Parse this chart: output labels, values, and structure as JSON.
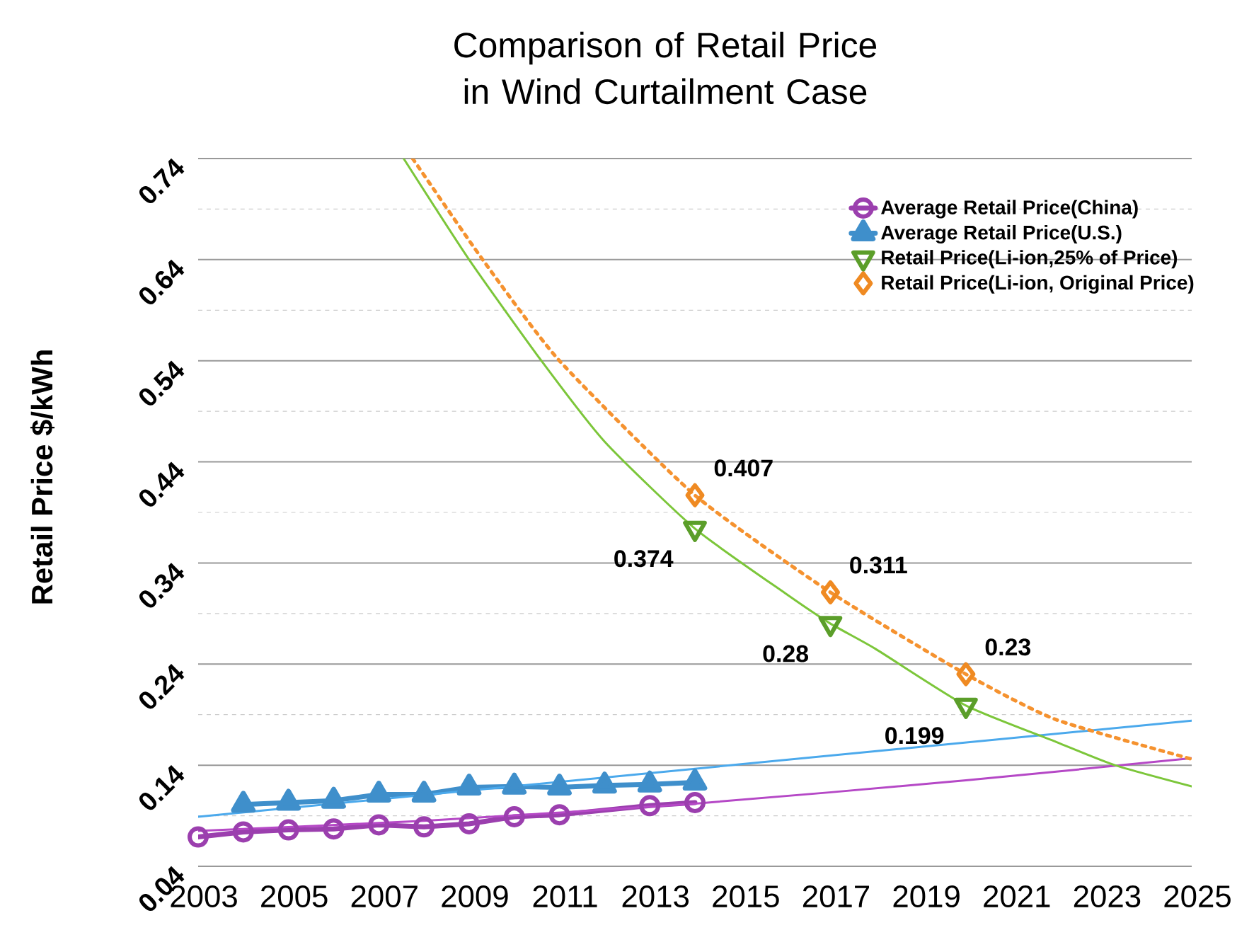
{
  "chart_data": {
    "type": "line",
    "title": "Comparison of Retail Price in Wind Curtailment Case",
    "ylabel": "Retail Price $/kWh",
    "xlim": [
      2003,
      2025
    ],
    "xticks": [
      2003,
      2005,
      2007,
      2009,
      2011,
      2013,
      2015,
      2017,
      2019,
      2021,
      2023,
      2025
    ],
    "ylim": [
      0.04,
      0.74
    ],
    "yticks": [
      0.04,
      0.14,
      0.24,
      0.34,
      0.44,
      0.54,
      0.64,
      0.74
    ],
    "grid": "y",
    "legend": "top right",
    "series": [
      {
        "name": "Average Retail Price(China)",
        "marker": "circle",
        "color": "#9b3fae",
        "x": [
          2003,
          2004,
          2005,
          2006,
          2007,
          2008,
          2009,
          2010,
          2011,
          2013,
          2014
        ],
        "values": [
          0.069,
          0.074,
          0.076,
          0.077,
          0.081,
          0.079,
          0.082,
          0.089,
          0.091,
          0.1,
          0.103
        ]
      },
      {
        "name": "Average Retail Price(U.S.)",
        "marker": "triangle",
        "color": "#3f8fcb",
        "x": [
          2004,
          2005,
          2006,
          2007,
          2008,
          2009,
          2010,
          2011,
          2012,
          2013,
          2014
        ],
        "values": [
          0.101,
          0.103,
          0.105,
          0.111,
          0.111,
          0.118,
          0.119,
          0.118,
          0.12,
          0.121,
          0.123
        ]
      },
      {
        "name": "Retail Price(Li-ion,25% of Price)",
        "type": "scatter",
        "marker": "triangle down",
        "color": "#5b9e2a",
        "x": [
          2014,
          2017,
          2020
        ],
        "values": [
          0.374,
          0.28,
          0.199
        ],
        "value_labels": [
          "0.374",
          "0.28",
          "0.199"
        ]
      },
      {
        "name": "Retail Price(Li-ion, Original Price)",
        "type": "scatter",
        "marker": "diamond",
        "color": "#ef8a22",
        "x": [
          2014,
          2017,
          2020
        ],
        "values": [
          0.407,
          0.311,
          0.23
        ],
        "value_labels": [
          "0.407",
          "0.311",
          "0.23"
        ]
      },
      {
        "type": "line",
        "marker": "none",
        "color": "#b548c6",
        "x": [
          2003,
          2008,
          2014,
          2020,
          2025
        ],
        "values": [
          0.075,
          0.085,
          0.102,
          0.125,
          0.147
        ]
      },
      {
        "type": "line",
        "marker": "none",
        "color": "#4ba9ec",
        "x": [
          2003,
          2025
        ],
        "values": [
          0.089,
          0.184
        ]
      },
      {
        "type": "line",
        "marker": "none",
        "color": "#7cc63a",
        "x": [
          2007.55,
          2009,
          2010.6,
          2012,
          2014,
          2016,
          2017,
          2018,
          2020,
          2022,
          2023.3,
          2025
        ],
        "values": [
          0.74,
          0.64,
          0.54,
          0.46,
          0.374,
          0.31,
          0.28,
          0.255,
          0.199,
          0.163,
          0.14,
          0.119
        ]
      },
      {
        "type": "line",
        "marker": "none",
        "line_style": "dotted",
        "color": "#f5922f",
        "x": [
          2007.75,
          2009.3,
          2011,
          2014,
          2017,
          2020,
          2022,
          2025
        ],
        "values": [
          0.74,
          0.64,
          0.54,
          0.407,
          0.311,
          0.23,
          0.185,
          0.146
        ]
      }
    ]
  }
}
